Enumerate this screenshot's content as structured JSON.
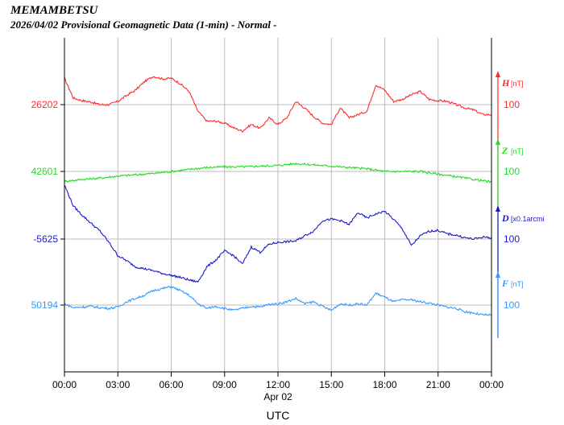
{
  "header": {
    "station": "MEMAMBETSU",
    "subtitle": "2026/04/02  Provisional Geomagnetic Data (1-min)  - Normal -"
  },
  "colors": {
    "H": "#ff2a2a",
    "Z": "#22dd22",
    "D": "#1a1acc",
    "F": "#3399ff",
    "grid": "#bbbbbb",
    "axis": "#000000"
  },
  "chart_data": {
    "type": "line",
    "xlabel": "UTC",
    "date_label": "Apr 02",
    "x_ticks": [
      "00:00",
      "03:00",
      "06:00",
      "09:00",
      "12:00",
      "15:00",
      "18:00",
      "21:00",
      "00:00"
    ],
    "x_tick_hours": [
      0,
      3,
      6,
      9,
      12,
      15,
      18,
      21,
      24
    ],
    "xlim": [
      0,
      24
    ],
    "grid": true,
    "series": [
      {
        "key": "H",
        "name": "H",
        "unit": "[nT]",
        "base_label": "26202",
        "scale_label": "100",
        "scale_span": 100,
        "points": [
          [
            0,
            40
          ],
          [
            0.5,
            10
          ],
          [
            1,
            6
          ],
          [
            1.5,
            4
          ],
          [
            2,
            0
          ],
          [
            2.5,
            0
          ],
          [
            3,
            5
          ],
          [
            3.5,
            14
          ],
          [
            4,
            22
          ],
          [
            4.5,
            35
          ],
          [
            5,
            43
          ],
          [
            5.5,
            39
          ],
          [
            6,
            40
          ],
          [
            6.5,
            32
          ],
          [
            7,
            20
          ],
          [
            7.5,
            -10
          ],
          [
            8,
            -25
          ],
          [
            8.5,
            -25
          ],
          [
            9,
            -28
          ],
          [
            9.5,
            -35
          ],
          [
            10,
            -40
          ],
          [
            10.5,
            -30
          ],
          [
            11,
            -36
          ],
          [
            11.5,
            -20
          ],
          [
            12,
            -30
          ],
          [
            12.5,
            -20
          ],
          [
            13,
            5
          ],
          [
            13.5,
            -5
          ],
          [
            14,
            -18
          ],
          [
            14.5,
            -28
          ],
          [
            15,
            -30
          ],
          [
            15.5,
            -5
          ],
          [
            16,
            -20
          ],
          [
            16.5,
            -15
          ],
          [
            17,
            -10
          ],
          [
            17.5,
            30
          ],
          [
            18,
            22
          ],
          [
            18.5,
            5
          ],
          [
            19,
            8
          ],
          [
            19.5,
            15
          ],
          [
            20,
            20
          ],
          [
            20.5,
            8
          ],
          [
            21,
            6
          ],
          [
            21.5,
            5
          ],
          [
            22,
            0
          ],
          [
            22.5,
            -5
          ],
          [
            23,
            -8
          ],
          [
            23.5,
            -15
          ],
          [
            24,
            -15
          ]
        ]
      },
      {
        "key": "Z",
        "name": "Z",
        "unit": "[nT]",
        "base_label": "42601",
        "scale_label": "100",
        "scale_span": 100,
        "points": [
          [
            0,
            -15
          ],
          [
            1,
            -12
          ],
          [
            2,
            -10
          ],
          [
            3,
            -7
          ],
          [
            4,
            -5
          ],
          [
            5,
            -3
          ],
          [
            6,
            0
          ],
          [
            7,
            3
          ],
          [
            8,
            6
          ],
          [
            9,
            7
          ],
          [
            10,
            7
          ],
          [
            11,
            8
          ],
          [
            12,
            9
          ],
          [
            13,
            12
          ],
          [
            14,
            10
          ],
          [
            15,
            8
          ],
          [
            16,
            6
          ],
          [
            17,
            4
          ],
          [
            18,
            0
          ],
          [
            19,
            0
          ],
          [
            20,
            0
          ],
          [
            21,
            -4
          ],
          [
            22,
            -8
          ],
          [
            23,
            -12
          ],
          [
            24,
            -16
          ]
        ]
      },
      {
        "key": "D",
        "name": "D",
        "unit": "[x0.1arcmi",
        "base_label": "-5625",
        "scale_label": "100",
        "scale_span": 100,
        "points": [
          [
            0,
            82
          ],
          [
            0.5,
            50
          ],
          [
            1,
            36
          ],
          [
            1.5,
            24
          ],
          [
            2,
            12
          ],
          [
            2.5,
            -5
          ],
          [
            3,
            -25
          ],
          [
            3.5,
            -33
          ],
          [
            4,
            -42
          ],
          [
            4.5,
            -45
          ],
          [
            5,
            -48
          ],
          [
            5.5,
            -52
          ],
          [
            6,
            -55
          ],
          [
            6.5,
            -58
          ],
          [
            7,
            -62
          ],
          [
            7.5,
            -65
          ],
          [
            8,
            -42
          ],
          [
            8.5,
            -32
          ],
          [
            9,
            -18
          ],
          [
            9.5,
            -25
          ],
          [
            10,
            -38
          ],
          [
            10.5,
            -12
          ],
          [
            11,
            -20
          ],
          [
            11.5,
            -8
          ],
          [
            12,
            -5
          ],
          [
            12.5,
            -4
          ],
          [
            13,
            -3
          ],
          [
            13.5,
            5
          ],
          [
            14,
            12
          ],
          [
            14.5,
            28
          ],
          [
            15,
            30
          ],
          [
            15.5,
            28
          ],
          [
            16,
            22
          ],
          [
            16.5,
            40
          ],
          [
            17,
            32
          ],
          [
            17.5,
            38
          ],
          [
            18,
            42
          ],
          [
            18.5,
            30
          ],
          [
            19,
            15
          ],
          [
            19.5,
            -10
          ],
          [
            20,
            5
          ],
          [
            20.5,
            12
          ],
          [
            21,
            13
          ],
          [
            21.5,
            8
          ],
          [
            22,
            6
          ],
          [
            22.5,
            2
          ],
          [
            23,
            0
          ],
          [
            23.5,
            3
          ],
          [
            24,
            2
          ]
        ]
      },
      {
        "key": "F",
        "name": "F",
        "unit": "[nT]",
        "base_label": "50194",
        "scale_label": "100",
        "scale_span": 100,
        "points": [
          [
            0,
            2
          ],
          [
            0.5,
            -4
          ],
          [
            1,
            -3
          ],
          [
            1.5,
            -2
          ],
          [
            2,
            -4
          ],
          [
            2.5,
            -5
          ],
          [
            3,
            -3
          ],
          [
            3.5,
            5
          ],
          [
            4,
            10
          ],
          [
            4.5,
            15
          ],
          [
            5,
            22
          ],
          [
            5.5,
            25
          ],
          [
            6,
            28
          ],
          [
            6.5,
            22
          ],
          [
            7,
            15
          ],
          [
            7.5,
            2
          ],
          [
            8,
            -5
          ],
          [
            8.5,
            -2
          ],
          [
            9,
            -5
          ],
          [
            9.5,
            -8
          ],
          [
            10,
            -5
          ],
          [
            10.5,
            -2
          ],
          [
            11,
            -3
          ],
          [
            11.5,
            1
          ],
          [
            12,
            2
          ],
          [
            12.5,
            5
          ],
          [
            13,
            10
          ],
          [
            13.5,
            2
          ],
          [
            14,
            5
          ],
          [
            14.5,
            -2
          ],
          [
            15,
            -8
          ],
          [
            15.5,
            2
          ],
          [
            16,
            0
          ],
          [
            16.5,
            2
          ],
          [
            17,
            0
          ],
          [
            17.5,
            18
          ],
          [
            18,
            12
          ],
          [
            18.5,
            5
          ],
          [
            19,
            8
          ],
          [
            19.5,
            8
          ],
          [
            20,
            5
          ],
          [
            20.5,
            3
          ],
          [
            21,
            0
          ],
          [
            21.5,
            -3
          ],
          [
            22,
            -5
          ],
          [
            22.5,
            -10
          ],
          [
            23,
            -12
          ],
          [
            23.5,
            -15
          ],
          [
            24,
            -15
          ]
        ]
      }
    ]
  }
}
